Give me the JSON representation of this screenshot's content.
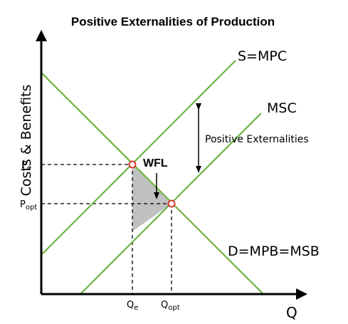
{
  "title": "Positive Externalities of Production",
  "axes": {
    "y_label": "Costs & Benefits",
    "x_label": "Q"
  },
  "curves": {
    "supply_label": "S=MPC",
    "msc_label": "MSC",
    "demand_label": "D=MPB=MSB"
  },
  "annotations": {
    "externality_label": "Positive Externalities",
    "welfare_loss_label": "WFL"
  },
  "ticks": {
    "p_e": {
      "main": "P",
      "sub": "e"
    },
    "p_opt": {
      "main": "P",
      "sub": "opt"
    },
    "q_e": {
      "main": "Q",
      "sub": "e"
    },
    "q_opt": {
      "main": "Q",
      "sub": "opt"
    }
  },
  "colors": {
    "curve": "#6db33f",
    "axis": "#000000",
    "equilibrium_point": "#d9352a",
    "welfare_loss_fill": "#c0c0c0",
    "guide_line": "#000000"
  }
}
